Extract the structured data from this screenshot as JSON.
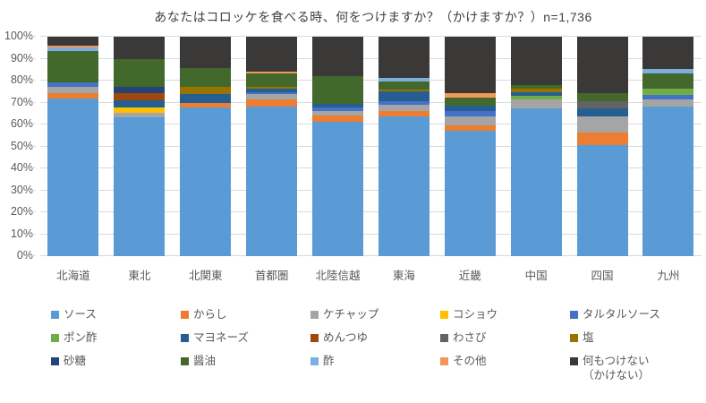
{
  "chart_data": {
    "type": "stacked-bar-100",
    "title": "あなたはコロッケを食べる時、何をつけますか？（かけますか？）n=1,736",
    "sample_size_note": "n=1,736",
    "categories": [
      "北海道",
      "東北",
      "北関東",
      "首都圏",
      "北陸信越",
      "東海",
      "近畿",
      "中国",
      "四国",
      "九州"
    ],
    "y_ticks": [
      "0%",
      "10%",
      "20%",
      "30%",
      "40%",
      "50%",
      "60%",
      "70%",
      "80%",
      "90%",
      "100%"
    ],
    "ylim": [
      0,
      100
    ],
    "grid": true,
    "legend_position": "bottom",
    "units": "percent",
    "series": [
      {
        "name": "ソース",
        "color": "#5B9BD5",
        "values": [
          72.0,
          63.3,
          67.9,
          68.3,
          61.1,
          63.8,
          57.3,
          67.5,
          50.5,
          68.2
        ]
      },
      {
        "name": "からし",
        "color": "#ED7D31",
        "values": [
          2.2,
          0,
          1.8,
          3.2,
          3.1,
          2.3,
          2.5,
          0,
          5.9,
          0
        ]
      },
      {
        "name": "ケチャップ",
        "color": "#A5A5A5",
        "values": [
          3.0,
          1.9,
          0,
          2.4,
          1.9,
          2.7,
          3.7,
          3.8,
          7.1,
          3.1
        ]
      },
      {
        "name": "コショウ",
        "color": "#FFC000",
        "values": [
          0,
          2.5,
          0,
          0,
          0,
          0,
          0,
          0,
          0,
          0
        ]
      },
      {
        "name": "タルタルソース",
        "color": "#4472C4",
        "values": [
          2.0,
          0,
          0,
          0.8,
          1.8,
          1.8,
          2.5,
          0,
          0,
          2.0
        ]
      },
      {
        "name": "ポン酢",
        "color": "#70AD47",
        "values": [
          0,
          0,
          0,
          0,
          0,
          0,
          0,
          1.9,
          0,
          3.0
        ]
      },
      {
        "name": "マヨネーズ",
        "color": "#255E91",
        "values": [
          0,
          3.4,
          4.3,
          1.5,
          1.6,
          4.5,
          2.7,
          1.4,
          3.8,
          0
        ]
      },
      {
        "name": "めんつゆ",
        "color": "#9E480E",
        "values": [
          0,
          3.4,
          0,
          0,
          0,
          0,
          0,
          0,
          0,
          0
        ]
      },
      {
        "name": "わさび",
        "color": "#636363",
        "values": [
          0,
          0,
          0,
          0,
          0,
          0,
          0,
          0,
          3.4,
          0
        ]
      },
      {
        "name": "塩",
        "color": "#997300",
        "values": [
          0,
          0,
          3.0,
          1.0,
          0,
          1.0,
          0,
          1.9,
          0,
          0
        ]
      },
      {
        "name": "砂糖",
        "color": "#264478",
        "values": [
          0,
          2.8,
          0,
          0,
          0,
          0,
          0,
          0,
          0,
          0
        ]
      },
      {
        "name": "醤油",
        "color": "#43682B",
        "values": [
          14.3,
          12.4,
          8.6,
          6.0,
          12.7,
          3.4,
          3.7,
          1.6,
          3.4,
          6.9
        ]
      },
      {
        "name": "酢",
        "color": "#7CAFDD",
        "values": [
          1.5,
          0,
          0,
          0,
          0,
          1.6,
          0,
          0,
          0,
          2.0
        ]
      },
      {
        "name": "その他",
        "color": "#F1975A",
        "values": [
          1.0,
          0,
          0,
          0.8,
          0,
          0,
          1.8,
          0,
          0,
          0
        ]
      },
      {
        "name": "何もつけない（かけない）",
        "color": "#3B3838",
        "legend_lines": [
          "何もつけない",
          "（かけない）"
        ],
        "values": [
          4.0,
          10.3,
          14.4,
          16.0,
          17.8,
          18.9,
          25.8,
          21.9,
          25.9,
          14.8
        ]
      }
    ],
    "style": {
      "gridline_color": "#D9D9D9",
      "axis_text_color": "#595959",
      "title_color": "#404040",
      "background": "#FFFFFF"
    }
  }
}
